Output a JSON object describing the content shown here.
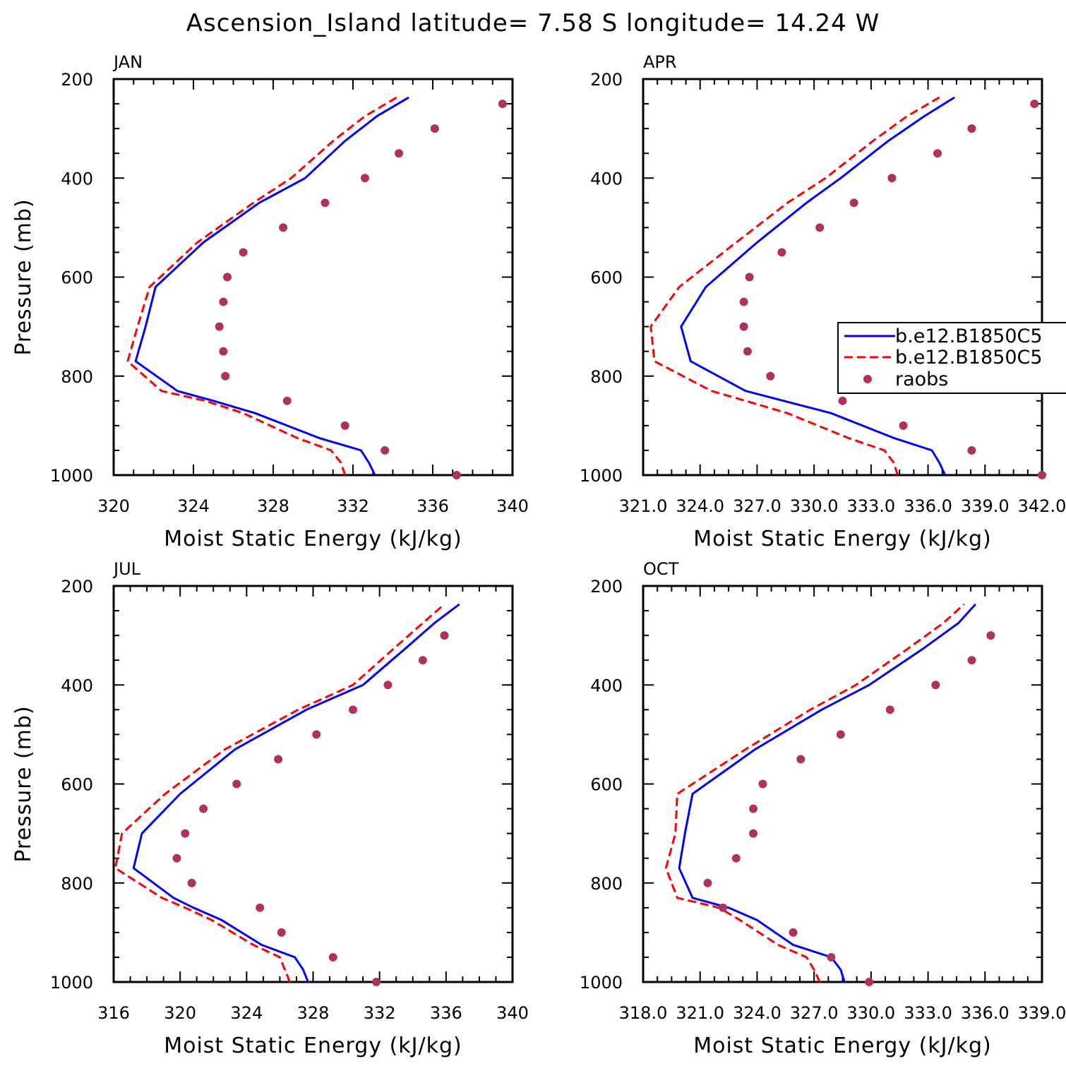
{
  "title": "Ascension_Island  latitude= 7.58 S longitude= 14.24 W",
  "legend": {
    "entries": [
      {
        "label": "b.e12.B1850C5",
        "style": "solid",
        "color": "#0000ff"
      },
      {
        "label": "b.e12.B1850C5",
        "style": "dashed",
        "color": "#ff0000"
      },
      {
        "label": "raobs",
        "style": "marker",
        "color": "#b03060"
      }
    ]
  },
  "colors": {
    "model_a": "#0000ff",
    "model_b": "#ff0000",
    "raobs": "#b03060"
  },
  "chart_data": [
    {
      "type": "line",
      "panel": "JAN",
      "xlabel": "Moist Static Energy (kJ/kg)",
      "ylabel": "Pressure (mb)",
      "xlim": [
        320,
        340
      ],
      "ylim": [
        1000,
        200
      ],
      "xticks": [
        320,
        324,
        328,
        332,
        336,
        340
      ],
      "xtick_labels": [
        "320",
        "324",
        "328",
        "332",
        "336",
        "340"
      ],
      "yticks": [
        200,
        400,
        600,
        800,
        1000
      ],
      "ytick_labels": [
        "200",
        "400",
        "600",
        "800",
        "1000"
      ],
      "series": [
        {
          "style": "solid",
          "color": "#0000ff",
          "x": [
            333.1,
            332.8,
            332.4,
            330.3,
            327.1,
            325.0,
            323.2,
            321.1,
            321.6,
            322.1,
            324.5,
            327.3,
            329.6,
            331.6,
            333.2,
            334.8
          ],
          "y": [
            1000,
            975,
            950,
            925,
            875,
            850,
            830,
            770,
            700,
            620,
            530,
            450,
            400,
            325,
            275,
            237
          ]
        },
        {
          "style": "dashed",
          "color": "#ff0000",
          "x": [
            331.6,
            331.4,
            330.9,
            329.2,
            326.5,
            324.6,
            322.4,
            320.7,
            321.2,
            321.8,
            324.2,
            327.0,
            328.9,
            331.0,
            332.6,
            334.2
          ],
          "y": [
            1000,
            975,
            950,
            925,
            875,
            850,
            830,
            770,
            700,
            620,
            530,
            450,
            400,
            325,
            275,
            237
          ]
        },
        {
          "style": "marker",
          "color": "#b03060",
          "x": [
            337.2,
            333.6,
            331.6,
            328.7,
            325.6,
            325.5,
            325.3,
            325.5,
            325.7,
            326.5,
            328.5,
            330.6,
            332.6,
            334.3,
            336.1,
            339.5
          ],
          "y": [
            1000,
            950,
            900,
            850,
            800,
            750,
            700,
            650,
            600,
            550,
            500,
            450,
            400,
            350,
            300,
            250
          ]
        }
      ]
    },
    {
      "type": "line",
      "panel": "APR",
      "xlabel": "Moist Static Energy (kJ/kg)",
      "ylabel": "",
      "xlim": [
        321.0,
        342.0
      ],
      "ylim": [
        1000,
        200
      ],
      "xticks": [
        321.0,
        324.0,
        327.0,
        330.0,
        333.0,
        336.0,
        339.0,
        342.0
      ],
      "xtick_labels": [
        "321.0",
        "324.0",
        "327.0",
        "330.0",
        "333.0",
        "336.0",
        "339.0",
        "342.0"
      ],
      "yticks": [
        200,
        400,
        600,
        800,
        1000
      ],
      "ytick_labels": [
        "200",
        "400",
        "600",
        "800",
        "1000"
      ],
      "series": [
        {
          "style": "solid",
          "color": "#0000ff",
          "x": [
            336.9,
            336.6,
            336.2,
            334.2,
            330.9,
            328.4,
            326.4,
            323.5,
            323.0,
            324.3,
            327.0,
            329.6,
            331.4,
            333.9,
            335.8,
            337.4
          ],
          "y": [
            1000,
            975,
            950,
            925,
            875,
            850,
            830,
            770,
            700,
            620,
            530,
            450,
            400,
            325,
            275,
            237
          ]
        },
        {
          "style": "dashed",
          "color": "#ff0000",
          "x": [
            334.4,
            334.2,
            333.7,
            331.8,
            328.6,
            326.4,
            324.6,
            321.6,
            321.4,
            322.9,
            325.9,
            328.6,
            330.6,
            333.1,
            334.9,
            336.6
          ],
          "y": [
            1000,
            975,
            950,
            925,
            875,
            850,
            830,
            770,
            700,
            620,
            530,
            450,
            400,
            325,
            275,
            237
          ]
        },
        {
          "style": "marker",
          "color": "#b03060",
          "x": [
            342.0,
            338.3,
            334.7,
            331.5,
            327.7,
            326.5,
            326.3,
            326.3,
            326.6,
            328.3,
            330.3,
            332.1,
            334.1,
            336.5,
            338.3,
            341.6
          ],
          "y": [
            1000,
            950,
            900,
            850,
            800,
            750,
            700,
            650,
            600,
            550,
            500,
            450,
            400,
            350,
            300,
            250
          ]
        }
      ]
    },
    {
      "type": "line",
      "panel": "JUL",
      "xlabel": "Moist Static Energy (kJ/kg)",
      "ylabel": "Pressure (mb)",
      "xlim": [
        316,
        340
      ],
      "ylim": [
        1000,
        200
      ],
      "xticks": [
        316,
        320,
        324,
        328,
        332,
        336,
        340
      ],
      "xtick_labels": [
        "316",
        "320",
        "324",
        "328",
        "332",
        "336",
        "340"
      ],
      "yticks": [
        200,
        400,
        600,
        800,
        1000
      ],
      "ytick_labels": [
        "200",
        "400",
        "600",
        "800",
        "1000"
      ],
      "series": [
        {
          "style": "solid",
          "color": "#0000ff",
          "x": [
            327.7,
            327.4,
            326.9,
            324.9,
            322.5,
            320.8,
            319.6,
            317.2,
            317.7,
            320.0,
            323.3,
            327.6,
            331.0,
            333.6,
            335.3,
            336.8
          ],
          "y": [
            1000,
            975,
            950,
            925,
            875,
            850,
            830,
            770,
            700,
            620,
            530,
            450,
            400,
            325,
            275,
            237
          ]
        },
        {
          "style": "dashed",
          "color": "#ff0000",
          "x": [
            326.6,
            326.3,
            326.0,
            324.4,
            321.9,
            320.3,
            318.9,
            316.1,
            316.5,
            319.1,
            322.7,
            327.1,
            330.4,
            332.9,
            334.6,
            335.9
          ],
          "y": [
            1000,
            975,
            950,
            925,
            875,
            850,
            830,
            770,
            700,
            620,
            530,
            450,
            400,
            325,
            275,
            237
          ]
        },
        {
          "style": "marker",
          "color": "#b03060",
          "x": [
            331.8,
            329.2,
            326.1,
            324.8,
            320.7,
            319.8,
            320.3,
            321.4,
            323.4,
            325.9,
            328.2,
            330.4,
            332.5,
            334.6,
            335.9
          ],
          "y": [
            1000,
            950,
            900,
            850,
            800,
            750,
            700,
            650,
            600,
            550,
            500,
            450,
            400,
            350,
            300
          ]
        }
      ]
    },
    {
      "type": "line",
      "panel": "OCT",
      "xlabel": "Moist Static Energy (kJ/kg)",
      "ylabel": "",
      "xlim": [
        318.0,
        339.0
      ],
      "ylim": [
        1000,
        200
      ],
      "xticks": [
        318.0,
        321.0,
        324.0,
        327.0,
        330.0,
        333.0,
        336.0,
        339.0
      ],
      "xtick_labels": [
        "318.0",
        "321.0",
        "324.0",
        "327.0",
        "330.0",
        "333.0",
        "336.0",
        "339.0"
      ],
      "yticks": [
        200,
        400,
        600,
        800,
        1000
      ],
      "ytick_labels": [
        "200",
        "400",
        "600",
        "800",
        "1000"
      ],
      "series": [
        {
          "style": "solid",
          "color": "#0000ff",
          "x": [
            328.6,
            328.4,
            327.9,
            325.9,
            324.0,
            322.5,
            320.6,
            319.9,
            320.2,
            320.6,
            323.9,
            327.4,
            329.9,
            332.8,
            334.6,
            335.5
          ],
          "y": [
            1000,
            975,
            950,
            925,
            875,
            850,
            830,
            770,
            700,
            620,
            530,
            450,
            400,
            325,
            275,
            237
          ]
        },
        {
          "style": "dashed",
          "color": "#ff0000",
          "x": [
            327.3,
            327.0,
            326.6,
            325.1,
            323.1,
            322.0,
            319.8,
            319.2,
            319.7,
            319.8,
            323.4,
            326.8,
            329.2,
            332.0,
            333.8,
            334.9
          ],
          "y": [
            1000,
            975,
            950,
            925,
            875,
            850,
            830,
            770,
            700,
            620,
            530,
            450,
            400,
            325,
            275,
            237
          ]
        },
        {
          "style": "marker",
          "color": "#b03060",
          "x": [
            329.9,
            327.9,
            325.9,
            322.2,
            321.4,
            322.9,
            323.8,
            323.8,
            324.3,
            326.3,
            328.4,
            331.0,
            333.4,
            335.3,
            336.3
          ],
          "y": [
            1000,
            950,
            900,
            850,
            800,
            750,
            700,
            650,
            600,
            550,
            500,
            450,
            400,
            350,
            300
          ]
        }
      ]
    }
  ]
}
